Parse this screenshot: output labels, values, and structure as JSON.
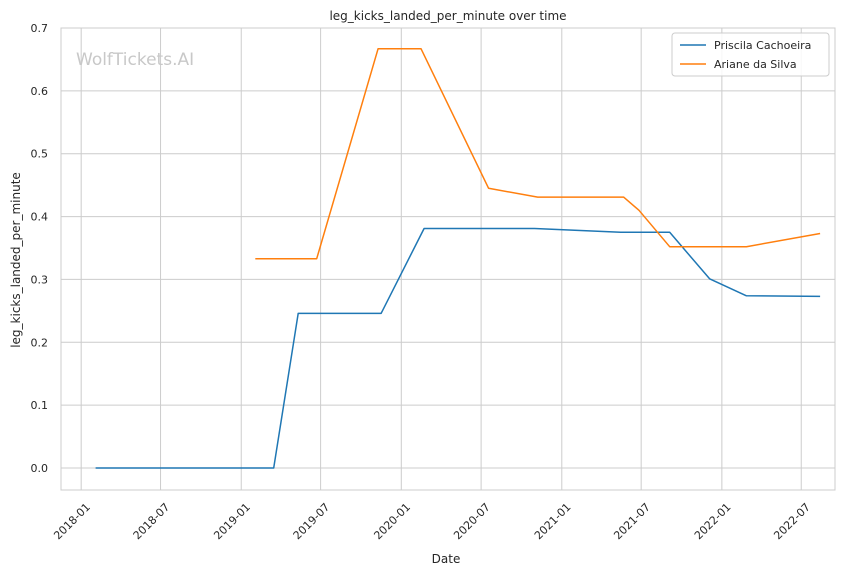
{
  "chart_data": {
    "type": "line",
    "title": "leg_kicks_landed_per_minute over time",
    "xlabel": "Date",
    "ylabel": "leg_kicks_landed_per_minute",
    "watermark": "WolfTickets.AI",
    "x_ticks": [
      "2018-01",
      "2018-07",
      "2019-01",
      "2019-07",
      "2020-01",
      "2020-07",
      "2021-01",
      "2021-07",
      "2022-01",
      "2022-07"
    ],
    "y_ticks": [
      "0.0",
      "0.1",
      "0.2",
      "0.3",
      "0.4",
      "0.5",
      "0.6",
      "0.7"
    ],
    "ylim": [
      -0.035,
      0.7
    ],
    "xlim": [
      "2017-11-16",
      "2022-09-16"
    ],
    "grid": true,
    "legend_position": "top-right",
    "series": [
      {
        "name": "Priscila Cachoeira",
        "color": "#1f77b4",
        "points": [
          [
            "2018-02-03",
            0.0
          ],
          [
            "2019-03-16",
            0.0
          ],
          [
            "2019-05-11",
            0.246
          ],
          [
            "2019-11-16",
            0.246
          ],
          [
            "2020-02-22",
            0.381
          ],
          [
            "2020-10-31",
            0.381
          ],
          [
            "2021-05-15",
            0.375
          ],
          [
            "2021-09-04",
            0.375
          ],
          [
            "2021-12-04",
            0.301
          ],
          [
            "2022-02-26",
            0.274
          ],
          [
            "2022-08-13",
            0.273
          ]
        ]
      },
      {
        "name": "Ariane da Silva",
        "color": "#ff7f0e",
        "points": [
          [
            "2019-02-02",
            0.333
          ],
          [
            "2019-06-22",
            0.333
          ],
          [
            "2019-11-09",
            0.667
          ],
          [
            "2020-02-15",
            0.667
          ],
          [
            "2020-07-18",
            0.445
          ],
          [
            "2020-11-07",
            0.431
          ],
          [
            "2021-05-22",
            0.431
          ],
          [
            "2021-06-26",
            0.41
          ],
          [
            "2021-09-04",
            0.352
          ],
          [
            "2022-02-26",
            0.352
          ],
          [
            "2022-08-13",
            0.373
          ]
        ]
      }
    ]
  }
}
